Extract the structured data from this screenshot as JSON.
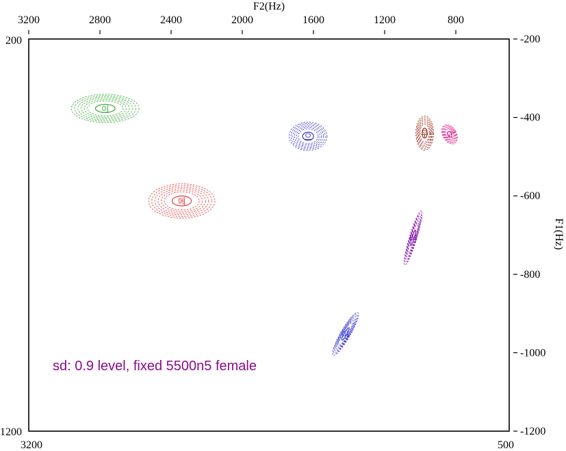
{
  "chart_data": {
    "type": "scatter",
    "subtype": "vowel-ellipse-plot",
    "title": "",
    "top_axis": {
      "label": "F2(Hz)",
      "ticks": [
        "3200",
        "2800",
        "2400",
        "2000",
        "1600",
        "1200",
        "800"
      ],
      "tick_values": [
        3200,
        2800,
        2400,
        2000,
        1600,
        1200,
        800
      ],
      "range": [
        3200,
        500
      ],
      "reversed": true
    },
    "bottom_axis": {
      "min_label": "3200",
      "max_label": "500"
    },
    "left_axis": {
      "min_label": "200",
      "max_label": "1200",
      "range": [
        200,
        1200
      ]
    },
    "right_axis": {
      "label": "F1(Hz)",
      "ticks": [
        "-200",
        "-400",
        "-600",
        "-800",
        "-1000",
        "-1200"
      ],
      "tick_values": [
        -200,
        -400,
        -600,
        -800,
        -1000,
        -1200
      ],
      "range": [
        -200,
        -1200
      ]
    },
    "annotation": "sd: 0.9 level, fixed 5500n5 female",
    "annotation_color": "#8b0a8b",
    "grid": false,
    "rings_per_vowel": 6,
    "series": [
      {
        "vowel": "이",
        "color": "#3aa83a",
        "f2": 2770,
        "f1": 377,
        "sd_f2": 100,
        "sd_f1": 19,
        "angle_deg": 0
      },
      {
        "vowel": "으",
        "color": "#3a3ac0",
        "f2": 1630,
        "f1": 448,
        "sd_f2": 56,
        "sd_f1": 19,
        "angle_deg": 0
      },
      {
        "vowel": "우",
        "color": "#9a2a18",
        "f2": 975,
        "f1": 440,
        "sd_f2": 26,
        "sd_f1": 23,
        "angle_deg": 0
      },
      {
        "vowel": "오",
        "color": "#e0208a",
        "f2": 835,
        "f1": 443,
        "sd_f2": 20,
        "sd_f1": 14,
        "angle_deg": -30
      },
      {
        "vowel": "에",
        "color": "#e03a3a",
        "f2": 2340,
        "f1": 613,
        "sd_f2": 98,
        "sd_f1": 23,
        "angle_deg": 0
      },
      {
        "vowel": "어",
        "color": "#8a22b0",
        "f2": 1040,
        "f1": 707,
        "sd_f2": 11,
        "sd_f1": 38,
        "angle_deg": 17
      },
      {
        "vowel": "아",
        "color": "#3a3ad0",
        "f2": 1420,
        "f1": 952,
        "sd_f2": 14,
        "sd_f1": 33,
        "angle_deg": 30
      }
    ]
  }
}
